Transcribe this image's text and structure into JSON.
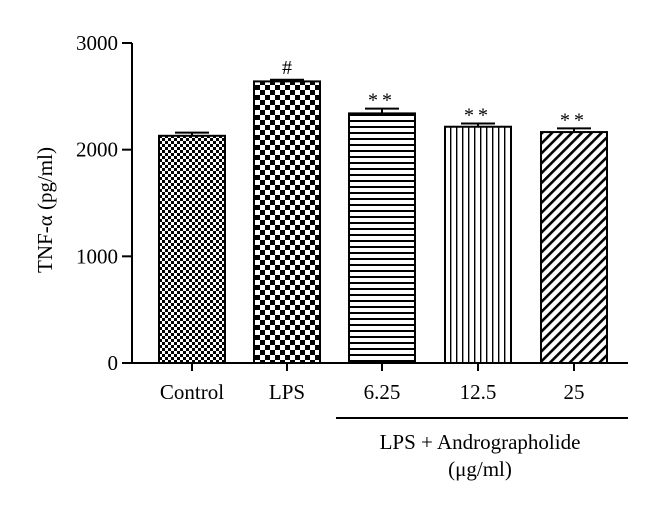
{
  "chart_data": {
    "type": "bar",
    "categories": [
      "Control",
      "LPS",
      "6.25",
      "12.5",
      "25"
    ],
    "values": [
      2130,
      2640,
      2340,
      2215,
      2165
    ],
    "errors": [
      30,
      15,
      45,
      30,
      35
    ],
    "annotations": [
      "",
      "#",
      "**",
      "**",
      "**"
    ],
    "patterns": [
      "fine-check",
      "coarse-check",
      "horizontal-lines",
      "vertical-lines",
      "diagonal-lines"
    ],
    "ylabel": "TNF-α (pg/ml)",
    "xlabel": "",
    "ylim": [
      0,
      3000
    ],
    "yticks": [
      0,
      1000,
      2000,
      3000
    ],
    "group_label_line1": "LPS + Andrographolide",
    "group_label_line2": "(μg/ml)",
    "grid": false,
    "bar_color": "#000000"
  }
}
